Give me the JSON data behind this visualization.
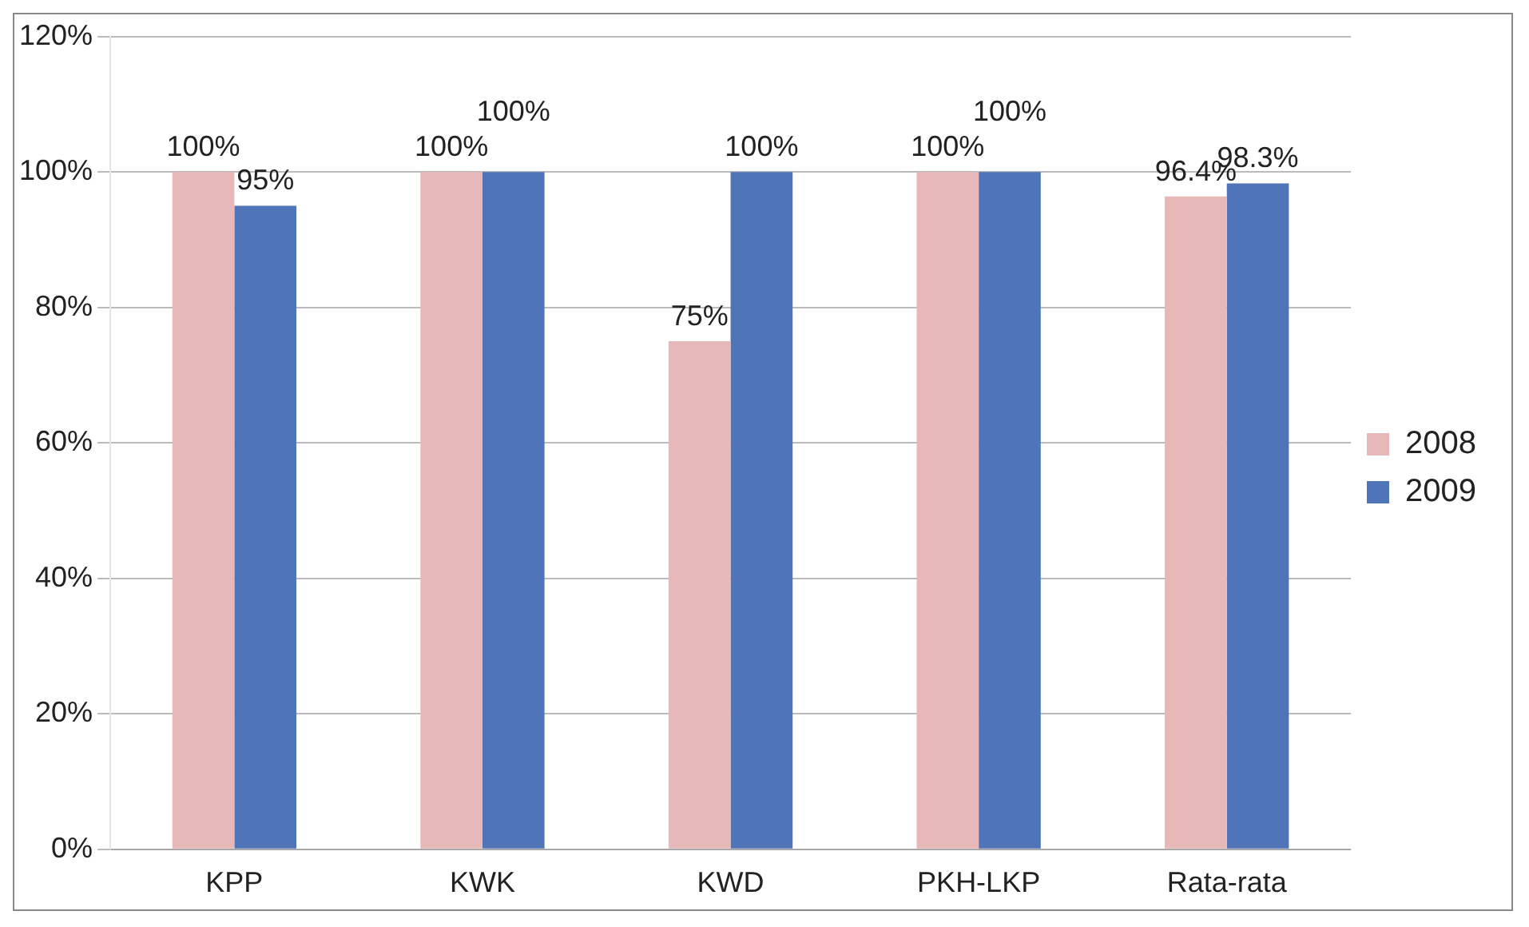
{
  "chart_data": {
    "type": "bar",
    "categories": [
      "KPP",
      "KWK",
      "KWD",
      "PKH-LKP",
      "Rata-rata"
    ],
    "series": [
      {
        "name": "2008",
        "color": "#e6b8b7",
        "values": [
          100,
          100,
          75,
          100,
          96.4
        ],
        "value_labels": [
          "100%",
          "100%",
          "75%",
          "100%",
          "96.4%"
        ]
      },
      {
        "name": "2009",
        "color": "#4f74b8",
        "values": [
          95,
          100,
          100,
          100,
          98.3
        ],
        "value_labels": [
          "95%",
          "100%",
          "100%",
          "100%",
          "98.3%"
        ]
      }
    ],
    "ylim": [
      0,
      120
    ],
    "yticks": [
      {
        "value": 0,
        "label": "0%"
      },
      {
        "value": 20,
        "label": "20%"
      },
      {
        "value": 40,
        "label": "40%"
      },
      {
        "value": 60,
        "label": "60%"
      },
      {
        "value": 80,
        "label": "80%"
      },
      {
        "value": 100,
        "label": "100%"
      },
      {
        "value": 120,
        "label": "120%"
      }
    ],
    "grid": "y",
    "legend": "right"
  }
}
